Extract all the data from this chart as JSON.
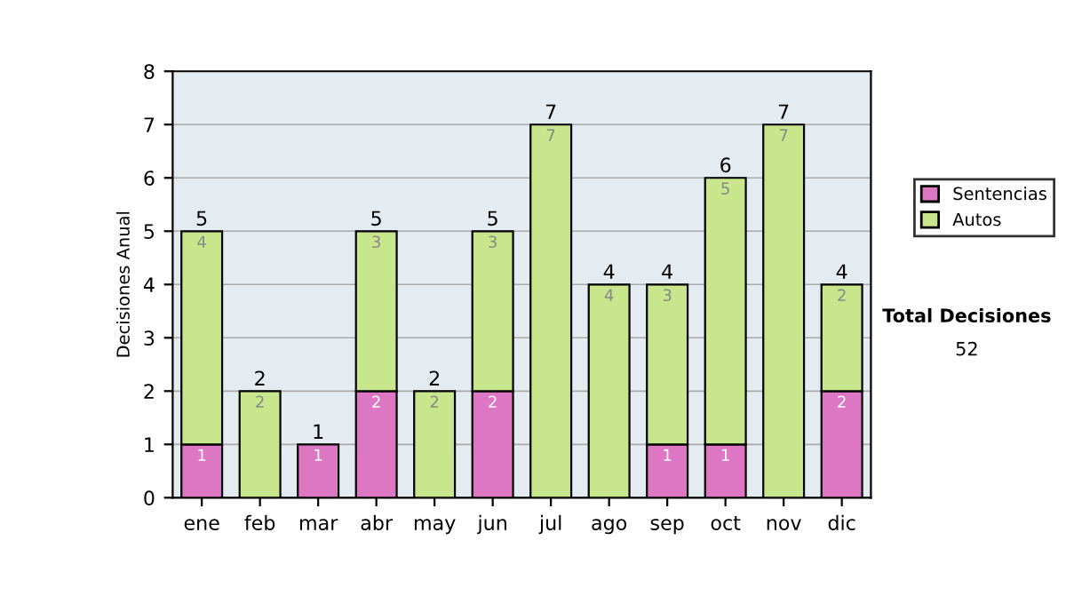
{
  "chart_data": {
    "type": "bar",
    "stacked": true,
    "ylabel": "Decisiones Anual",
    "categories": [
      "ene",
      "feb",
      "mar",
      "abr",
      "may",
      "jun",
      "jul",
      "ago",
      "sep",
      "oct",
      "nov",
      "dic"
    ],
    "series": [
      {
        "name": "Sentencias",
        "color": "#dd77c4",
        "values": [
          1,
          0,
          1,
          2,
          0,
          2,
          0,
          0,
          1,
          1,
          0,
          2
        ],
        "value_labels": [
          "1",
          null,
          "1",
          "2",
          null,
          "2",
          null,
          null,
          "1",
          "1",
          null,
          "2"
        ]
      },
      {
        "name": "Autos",
        "color": "#c8e68c",
        "values": [
          4,
          2,
          0,
          3,
          2,
          3,
          7,
          4,
          3,
          5,
          7,
          2
        ],
        "value_labels": [
          "4",
          "2",
          null,
          "3",
          "2",
          "3",
          "7",
          "4",
          "3",
          "5",
          "7",
          "2"
        ]
      }
    ],
    "totals": [
      "5",
      "2",
      "1",
      "5",
      "2",
      "5",
      "7",
      "4",
      "4",
      "6",
      "7",
      "4"
    ],
    "ylim": [
      0,
      8
    ],
    "yticks": [
      0,
      1,
      2,
      3,
      4,
      5,
      6,
      7,
      8
    ],
    "grid": "y",
    "legend": "right",
    "annotations": [
      "Total Decisiones",
      "52"
    ]
  }
}
